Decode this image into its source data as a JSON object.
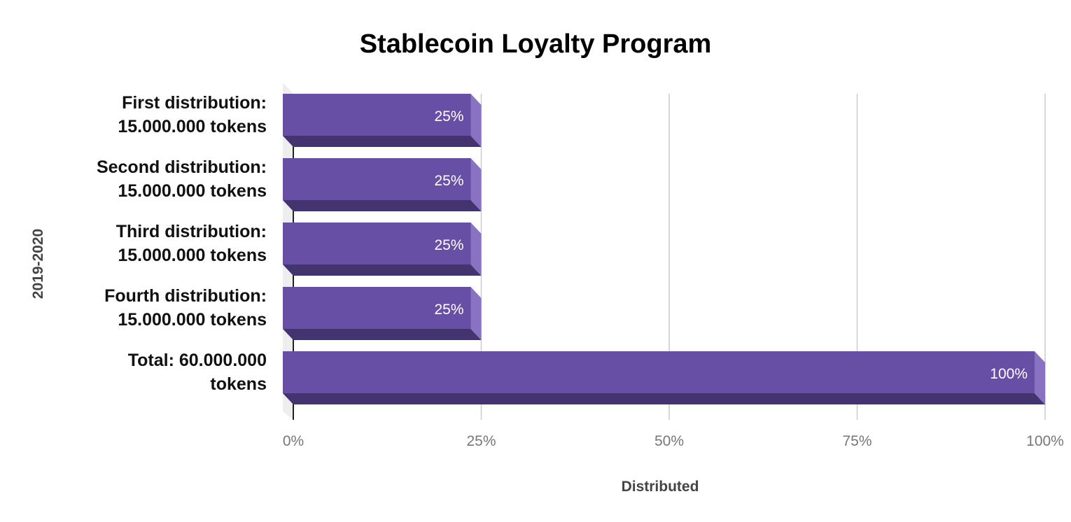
{
  "chart_data": {
    "type": "bar",
    "orientation": "horizontal",
    "style": "3d",
    "title": "Stablecoin Loyalty Program",
    "xlabel": "Distributed",
    "ylabel": "2019-2020",
    "categories": [
      [
        "First distribution:",
        "15.000.000 tokens"
      ],
      [
        "Second distribution:",
        "15.000.000 tokens"
      ],
      [
        "Third distribution:",
        "15.000.000 tokens"
      ],
      [
        "Fourth distribution:",
        "15.000.000 tokens"
      ],
      [
        "Total: 60.000.000",
        "tokens"
      ]
    ],
    "values": [
      25,
      25,
      25,
      25,
      100
    ],
    "data_labels": [
      "25%",
      "25%",
      "25%",
      "25%",
      "100%"
    ],
    "xlim": [
      0,
      100
    ],
    "xticks": [
      0,
      25,
      50,
      75,
      100
    ],
    "xtick_labels": [
      "0%",
      "25%",
      "50%",
      "75%",
      "100%"
    ],
    "grid": true,
    "legend": "none",
    "colors": {
      "bar_front": "#674fa6",
      "bar_side": "#8a72c2",
      "bar_bottom": "#43336e",
      "gridline": "#cccccc",
      "floor": "#eeeeee"
    }
  }
}
